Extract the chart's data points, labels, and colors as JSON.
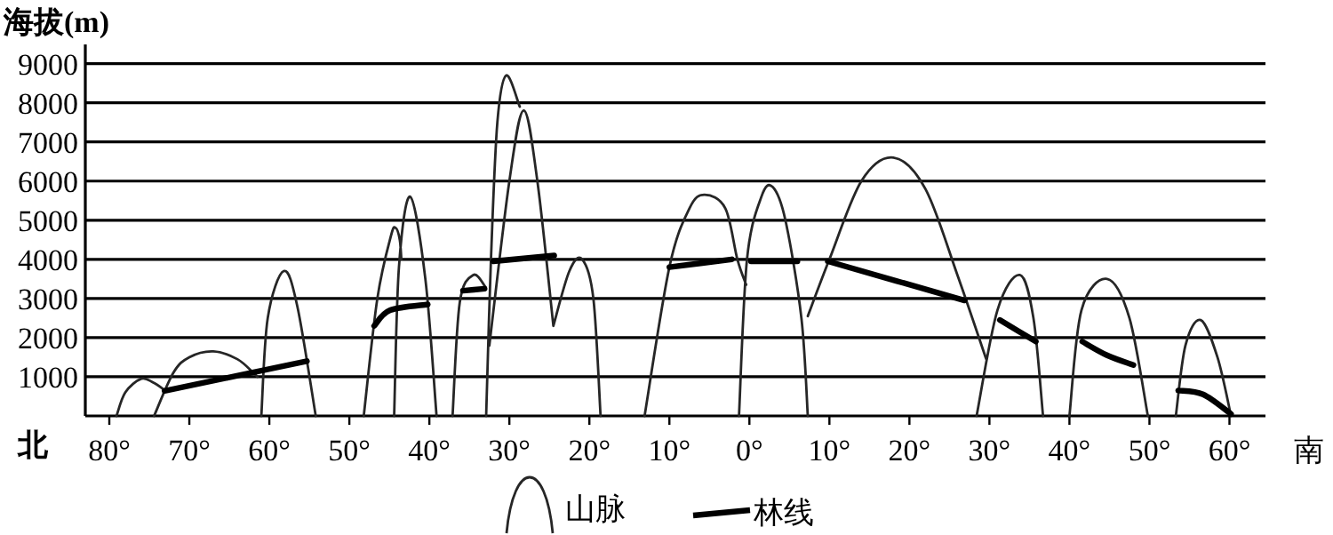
{
  "chart_data": {
    "type": "line",
    "ylabel": "海拔(m)",
    "annotations": [
      "北",
      "南"
    ],
    "xlim": [
      83,
      -64.5
    ],
    "xticks": [
      {
        "value": 80,
        "label": "80°"
      },
      {
        "value": 70,
        "label": "70°"
      },
      {
        "value": 60,
        "label": "60°"
      },
      {
        "value": 50,
        "label": "50°"
      },
      {
        "value": 40,
        "label": "40°"
      },
      {
        "value": 30,
        "label": "30°"
      },
      {
        "value": 20,
        "label": "20°"
      },
      {
        "value": 10,
        "label": "10°"
      },
      {
        "value": 0,
        "label": "0°"
      },
      {
        "value": -10,
        "label": "10°"
      },
      {
        "value": -20,
        "label": "20°"
      },
      {
        "value": -30,
        "label": "30°"
      },
      {
        "value": -40,
        "label": "40°"
      },
      {
        "value": -50,
        "label": "50°"
      },
      {
        "value": -60,
        "label": "60°"
      }
    ],
    "ylim": [
      0,
      9400
    ],
    "yticks": [
      1000,
      2000,
      3000,
      4000,
      5000,
      6000,
      7000,
      8000,
      9000
    ],
    "grid": "y",
    "legend": "bottom",
    "marker": "none",
    "series": [
      {
        "name": "山脉",
        "color": "#262626",
        "x": [
          79.1,
          78,
          76,
          74.5,
          73,
          null,
          74.4,
          72,
          70,
          67,
          64,
          62,
          61.5,
          null,
          61,
          60.2,
          58.2,
          56.5,
          54.2,
          null,
          48.2,
          46.5,
          44.8,
          44.2,
          43.7,
          43.5,
          null,
          44.4,
          43.8,
          42.4,
          40.5,
          39.1,
          null,
          37.1,
          36.2,
          34.5,
          33,
          null,
          32.9,
          32.3,
          31.5,
          30.4,
          28.7,
          null,
          32.5,
          30,
          28.2,
          26.5,
          24.5,
          null,
          24.5,
          22.5,
          20.9,
          19.5,
          18.6,
          null,
          13.1,
          10,
          7.5,
          5.6,
          3,
          1.5,
          0.4,
          null,
          1.3,
          0.3,
          -1.5,
          -2.9,
          -4.5,
          -6.5,
          -7.3,
          null,
          -7.3,
          -10,
          -14,
          -18,
          -22,
          -26,
          -29.6,
          null,
          -28.4,
          -31,
          -33.8,
          -35.5,
          -36.7,
          null,
          -40,
          -41.5,
          -44.7,
          -47.5,
          -49.8,
          null,
          -53.3,
          -54.5,
          -56.4,
          -58.5,
          -60.2
        ],
        "values": [
          0,
          600,
          950,
          850,
          650,
          null,
          0,
          1100,
          1500,
          1650,
          1450,
          1100,
          1000,
          null,
          0,
          2500,
          3700,
          2800,
          0,
          null,
          0,
          3000,
          4600,
          4800,
          4500,
          4000,
          null,
          0,
          3800,
          5600,
          3500,
          0,
          null,
          0,
          2900,
          3600,
          3300,
          null,
          0,
          4000,
          7500,
          8700,
          7900,
          null,
          1800,
          6000,
          7800,
          6000,
          2300,
          null,
          2300,
          3700,
          4000,
          3000,
          0,
          null,
          0,
          3800,
          5300,
          5650,
          5300,
          4000,
          3350,
          null,
          0,
          4000,
          5600,
          5850,
          5000,
          2500,
          0,
          null,
          2550,
          4000,
          6000,
          6600,
          5800,
          3600,
          1450,
          null,
          0,
          2700,
          3600,
          2500,
          0,
          null,
          0,
          2700,
          3500,
          2500,
          0,
          null,
          0,
          1800,
          2450,
          1500,
          0
        ]
      },
      {
        "name": "林线",
        "color": "#000000",
        "x": [
          73.1,
          55.3,
          null,
          46.9,
          44.9,
          40.2,
          null,
          35.8,
          33.1,
          null,
          32,
          24.4,
          null,
          10,
          2.2,
          null,
          -0.2,
          -6,
          null,
          -9.8,
          -26.9,
          null,
          -31.3,
          -35.8,
          null,
          -41.6,
          -44.7,
          -48,
          null,
          -53.6,
          -56.7,
          -60.2
        ],
        "values": [
          640,
          1400,
          null,
          2300,
          2700,
          2850,
          null,
          3200,
          3250,
          null,
          3950,
          4100,
          null,
          3800,
          4000,
          null,
          3950,
          3950,
          null,
          3950,
          2950,
          null,
          2450,
          1900,
          null,
          1900,
          1550,
          1300,
          null,
          650,
          550,
          50
        ]
      }
    ]
  }
}
